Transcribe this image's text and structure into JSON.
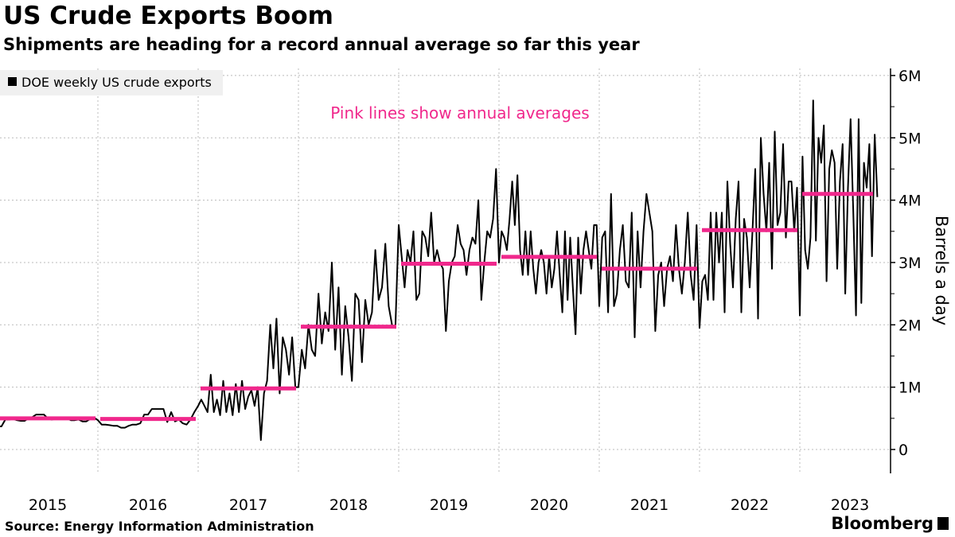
{
  "chart_data": {
    "type": "line",
    "title": "US Crude Exports Boom",
    "subtitle": "Shipments are heading for a record annual average so far this year",
    "ylabel": "Barrels a day",
    "ylim": [
      -0.4,
      6.2
    ],
    "yticks": [
      0,
      1,
      2,
      3,
      4,
      5,
      6
    ],
    "ytick_labels": [
      "0",
      "1M",
      "2M",
      "3M",
      "4M",
      "5M",
      "6M"
    ],
    "xtick_labels": [
      "2015",
      "2016",
      "2017",
      "2018",
      "2019",
      "2020",
      "2021",
      "2022",
      "2023"
    ],
    "grid": true,
    "legend": {
      "placement": "top-left",
      "entries": [
        "DOE weekly US crude exports"
      ]
    },
    "annotation": "Pink lines show annual averages",
    "source": "Source: Energy Information Administration",
    "colors": {
      "series": "#000000",
      "average": "#f0288c",
      "annotation": "#f0288c",
      "grid": "#bbbbbb",
      "legend_bg": "#f0f0f0"
    },
    "series": [
      {
        "name": "DOE weekly US crude exports",
        "unit": "million barrels a day",
        "by_year": {
          "2015": [
            0.37,
            0.37,
            0.48,
            0.48,
            0.49,
            0.47,
            0.46,
            0.46,
            0.5,
            0.52,
            0.56,
            0.56,
            0.56,
            0.5,
            0.48,
            0.49,
            0.51,
            0.5,
            0.5,
            0.47,
            0.47,
            0.48,
            0.45,
            0.45,
            0.49,
            0.51
          ],
          "2016": [
            0.47,
            0.4,
            0.4,
            0.39,
            0.38,
            0.38,
            0.35,
            0.35,
            0.38,
            0.4,
            0.4,
            0.42,
            0.56,
            0.56,
            0.65,
            0.65,
            0.65,
            0.65,
            0.44,
            0.6,
            0.45,
            0.48,
            0.42,
            0.4,
            0.48,
            0.6
          ],
          "2017": [
            0.7,
            0.8,
            0.7,
            0.6,
            1.2,
            0.6,
            0.8,
            0.55,
            1.1,
            0.6,
            0.9,
            0.55,
            1.05,
            0.6,
            1.1,
            0.65,
            0.85,
            0.95,
            0.7,
            1.0,
            0.15,
            0.9,
            1.1,
            2.0,
            1.3,
            2.1,
            0.9,
            1.8,
            1.6,
            1.2,
            1.8,
            1.0
          ],
          "2018": [
            1.0,
            1.6,
            1.3,
            2.0,
            1.6,
            1.5,
            2.5,
            1.7,
            2.2,
            1.9,
            3.0,
            1.6,
            2.6,
            1.2,
            2.3,
            1.8,
            1.1,
            2.5,
            2.4,
            1.4,
            2.4,
            2.0,
            2.2,
            3.2,
            2.4,
            2.6,
            3.3,
            2.3,
            2.0,
            1.95
          ],
          "2019": [
            3.6,
            3.1,
            2.6,
            3.2,
            3.0,
            3.5,
            2.4,
            2.5,
            3.5,
            3.4,
            3.1,
            3.8,
            3.0,
            3.2,
            3.0,
            2.9,
            1.9,
            2.7,
            3.0,
            3.1,
            3.6,
            3.3,
            3.2,
            2.8,
            3.2,
            3.4,
            3.3,
            4.0,
            2.4,
            3.0,
            3.5,
            3.4,
            3.7,
            4.5
          ],
          "2020": [
            3.0,
            3.5,
            3.4,
            3.2,
            3.7,
            4.3,
            3.6,
            4.4,
            3.2,
            2.8,
            3.5,
            2.8,
            3.5,
            2.9,
            2.5,
            3.0,
            3.2,
            3.0,
            2.5,
            3.1,
            2.6,
            2.9,
            3.5,
            2.8,
            2.2,
            3.5,
            2.4,
            3.4,
            2.6,
            1.85,
            3.4,
            2.5,
            3.2,
            3.5,
            3.2,
            2.9,
            3.6,
            3.6
          ],
          "2021": [
            2.3,
            3.4,
            3.5,
            2.2,
            4.1,
            2.3,
            2.5,
            3.2,
            3.6,
            2.7,
            2.6,
            3.8,
            1.8,
            3.5,
            2.6,
            3.5,
            4.1,
            3.8,
            3.5,
            1.9,
            2.8,
            3.0,
            2.3,
            2.9,
            3.1,
            2.7,
            3.6,
            2.9,
            2.5,
            3.0,
            3.8,
            2.8,
            2.4,
            3.6
          ],
          "2022": [
            1.95,
            2.7,
            2.8,
            2.4,
            3.8,
            2.4,
            3.8,
            3.0,
            3.8,
            2.2,
            4.3,
            3.3,
            2.6,
            3.7,
            4.3,
            2.2,
            3.7,
            3.4,
            2.6,
            3.5,
            4.5,
            2.1,
            5.0,
            4.1,
            3.5,
            4.6,
            2.9,
            5.1,
            3.6,
            3.8,
            4.9,
            3.4,
            4.3,
            4.3,
            3.5,
            4.2
          ],
          "2023": [
            2.15,
            4.7,
            3.2,
            2.9,
            3.4,
            5.6,
            3.35,
            5.0,
            4.6,
            5.2,
            2.7,
            4.5,
            4.8,
            4.6,
            2.9,
            4.3,
            4.9,
            2.5,
            4.2,
            5.3,
            3.8,
            2.15,
            5.3,
            2.35,
            4.6,
            4.2,
            4.9,
            3.1,
            5.05,
            4.05
          ]
        }
      }
    ],
    "annual_averages": {
      "2015": 0.5,
      "2016": 0.49,
      "2017": 0.98,
      "2018": 1.97,
      "2019": 2.98,
      "2020": 3.09,
      "2021": 2.9,
      "2022": 3.52,
      "2023": 4.1
    }
  }
}
